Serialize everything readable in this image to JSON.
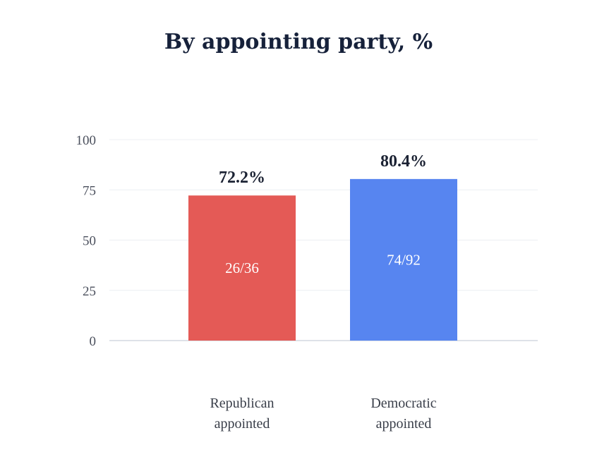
{
  "title": "By appointing party, %",
  "chart_data": {
    "type": "bar",
    "title": "By appointing party, %",
    "categories": [
      [
        "Republican",
        "appointed"
      ],
      [
        "Democratic",
        "appointed"
      ]
    ],
    "values": [
      72.2,
      80.4
    ],
    "value_labels": [
      "72.2%",
      "80.4%"
    ],
    "inner_labels": [
      "26/36",
      "74/92"
    ],
    "colors": [
      "#e45a56",
      "#5785f0"
    ],
    "ylim": [
      0,
      100
    ],
    "yticks": [
      0,
      25,
      50,
      75,
      100
    ],
    "xlabel": "",
    "ylabel": "",
    "grid": true
  }
}
